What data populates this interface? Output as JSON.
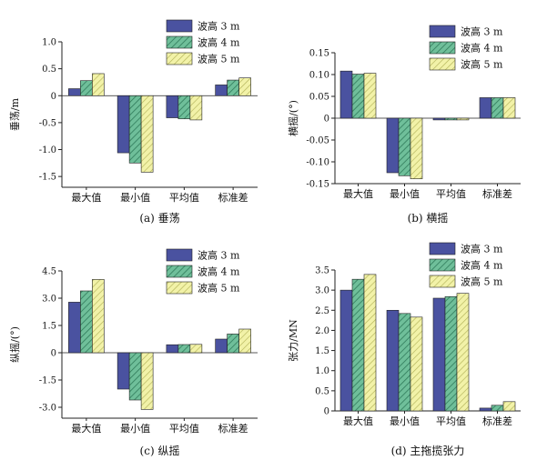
{
  "colors": {
    "blue": "#4a52a0",
    "green": "#6fbf9a",
    "yellow": "#f2f2a8",
    "stroke": "#222222"
  },
  "chart_data": [
    {
      "type": "bar",
      "panel_label": "(a) 垂荡",
      "ylabel": "垂荡/m",
      "categories": [
        "最大值",
        "最小值",
        "平均值",
        "标准差"
      ],
      "ylim": [
        -1.7,
        1.0
      ],
      "yticks": [
        1.0,
        0.5,
        0,
        -0.5,
        -1.0,
        -1.5
      ],
      "ytick_labels": [
        "1.0",
        "0.5",
        "0",
        "-0.5",
        "-1.0",
        "-1.5"
      ],
      "legend_position": "top-right",
      "series": [
        {
          "name": "波高 3 m",
          "values": [
            0.13,
            -1.06,
            -0.41,
            0.2
          ]
        },
        {
          "name": "波高 4 m",
          "values": [
            0.28,
            -1.25,
            -0.43,
            0.29
          ]
        },
        {
          "name": "波高 5 m",
          "values": [
            0.41,
            -1.42,
            -0.45,
            0.33
          ]
        }
      ]
    },
    {
      "type": "bar",
      "panel_label": "(b) 横摇",
      "ylabel": "横摇/(°)",
      "categories": [
        "最大值",
        "最小值",
        "平均值",
        "标准差"
      ],
      "ylim": [
        -0.15,
        0.15
      ],
      "yticks": [
        0.15,
        0.1,
        0.05,
        0,
        -0.05,
        -0.1,
        -0.15
      ],
      "ytick_labels": [
        "0.15",
        "0.10",
        "0.05",
        "0",
        "-0.05",
        "-0.10",
        "-0.15"
      ],
      "legend_position": "top-right",
      "series": [
        {
          "name": "波高 3 m",
          "values": [
            0.108,
            -0.125,
            -0.004,
            0.047
          ]
        },
        {
          "name": "波高 4 m",
          "values": [
            0.101,
            -0.132,
            -0.004,
            0.047
          ]
        },
        {
          "name": "波高 5 m",
          "values": [
            0.103,
            -0.139,
            -0.004,
            0.047
          ]
        }
      ]
    },
    {
      "type": "bar",
      "panel_label": "(c) 纵摇",
      "ylabel": "纵摇/(°)",
      "categories": [
        "最大值",
        "最小值",
        "平均值",
        "标准差"
      ],
      "ylim": [
        -3.6,
        4.5
      ],
      "yticks": [
        4.5,
        3.0,
        1.5,
        0,
        -1.5,
        -3.0
      ],
      "ytick_labels": [
        "4.5",
        "3.0",
        "1.5",
        "0",
        "-1.5",
        "-3.0"
      ],
      "legend_position": "top-right",
      "series": [
        {
          "name": "波高 3 m",
          "values": [
            2.78,
            -2.0,
            0.44,
            0.75
          ]
        },
        {
          "name": "波高 4 m",
          "values": [
            3.4,
            -2.6,
            0.45,
            1.03
          ]
        },
        {
          "name": "波高 5 m",
          "values": [
            4.03,
            -3.12,
            0.46,
            1.3
          ]
        }
      ]
    },
    {
      "type": "bar",
      "panel_label": "(d) 主拖揽张力",
      "ylabel": "张力/MN",
      "categories": [
        "最大值",
        "最小值",
        "平均值",
        "标准差"
      ],
      "ylim": [
        0,
        3.5
      ],
      "yticks": [
        0,
        0.5,
        1.0,
        1.5,
        2.0,
        2.5,
        3.0,
        3.5
      ],
      "ytick_labels": [
        "0",
        "0.5",
        "1.0",
        "1.5",
        "2.0",
        "2.5",
        "3.0",
        "3.5"
      ],
      "legend_position": "top-right",
      "series": [
        {
          "name": "波高 3 m",
          "values": [
            3.0,
            2.5,
            2.8,
            0.07
          ]
        },
        {
          "name": "波高 4 m",
          "values": [
            3.27,
            2.42,
            2.84,
            0.14
          ]
        },
        {
          "name": "波高 5 m",
          "values": [
            3.39,
            2.33,
            2.92,
            0.23
          ]
        }
      ]
    }
  ]
}
